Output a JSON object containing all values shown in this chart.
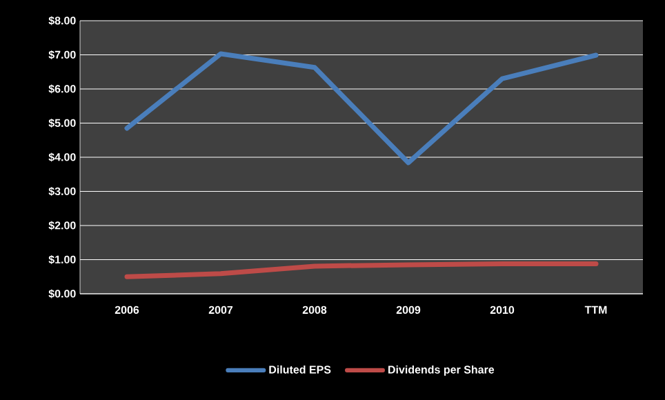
{
  "chart_data": {
    "type": "line",
    "categories": [
      "2006",
      "2007",
      "2008",
      "2009",
      "2010",
      "TTM"
    ],
    "series": [
      {
        "name": "Diluted EPS",
        "color": "#4a7ebb",
        "values": [
          4.85,
          7.03,
          6.63,
          3.84,
          6.3,
          6.99
        ]
      },
      {
        "name": "Dividends per Share",
        "color": "#be4b48",
        "values": [
          0.5,
          0.59,
          0.81,
          0.85,
          0.88,
          0.88
        ]
      }
    ],
    "ylim": [
      0,
      8
    ],
    "yticks": [
      {
        "value": 0,
        "label": "$0.00"
      },
      {
        "value": 1,
        "label": "$1.00"
      },
      {
        "value": 2,
        "label": "$2.00"
      },
      {
        "value": 3,
        "label": "$3.00"
      },
      {
        "value": 4,
        "label": "$4.00"
      },
      {
        "value": 5,
        "label": "$5.00"
      },
      {
        "value": 6,
        "label": "$6.00"
      },
      {
        "value": 7,
        "label": "$7.00"
      },
      {
        "value": 8,
        "label": "$8.00"
      }
    ],
    "grid": "y",
    "legend": "bottom",
    "marker": "none",
    "line_style": "solid"
  }
}
